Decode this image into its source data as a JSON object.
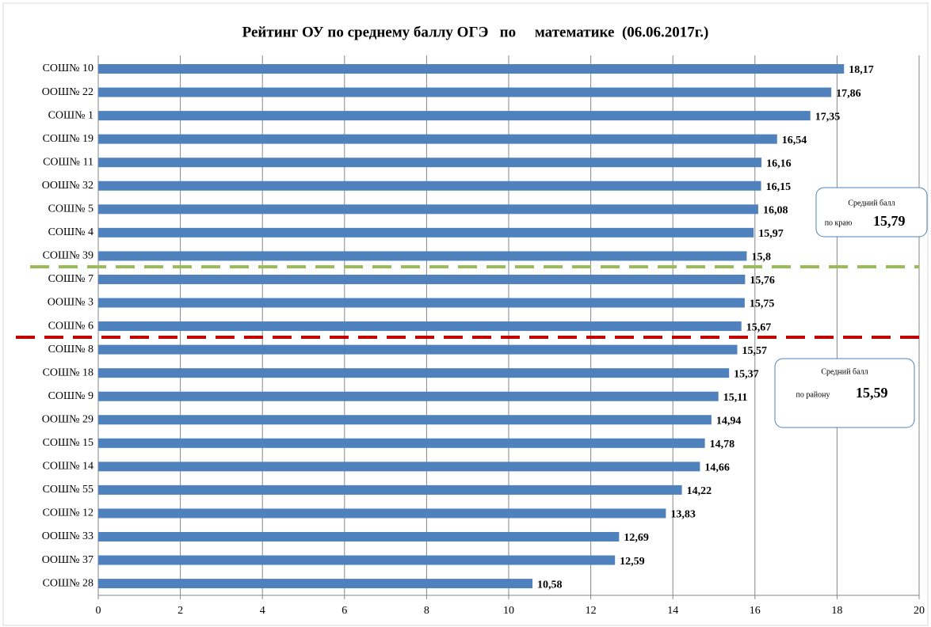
{
  "chart_data": {
    "type": "bar",
    "orientation": "horizontal",
    "title": "Рейтинг ОУ по среднему баллу ОГЭ   по     математике  (06.06.2017г.)",
    "categories": [
      "СОШ№ 10",
      "ООШ№ 22",
      "СОШ№ 1",
      "СОШ№ 19",
      "СОШ№ 11",
      "ООШ№ 32",
      "СОШ№ 5",
      "СОШ№ 4",
      "СОШ№ 39",
      "СОШ№ 7",
      "ООШ№ 3",
      "СОШ№ 6",
      "СОШ№ 8",
      "СОШ№ 18",
      "СОШ№ 9",
      "ООШ№ 29",
      "СОШ№ 15",
      "СОШ№ 14",
      "СОШ№ 55",
      "СОШ№ 12",
      "ООШ№ 33",
      "ООШ№ 37",
      "СОШ№ 28"
    ],
    "values": [
      18.17,
      17.86,
      17.35,
      16.54,
      16.16,
      16.15,
      16.08,
      15.97,
      15.8,
      15.76,
      15.75,
      15.67,
      15.57,
      15.37,
      15.11,
      14.94,
      14.78,
      14.66,
      14.22,
      13.83,
      12.69,
      12.59,
      10.58
    ],
    "value_labels": [
      "18,17",
      "17,86",
      "17,35",
      "16,54",
      "16,16",
      "16,15",
      "16,08",
      "15,97",
      "15,8",
      "15,76",
      "15,75",
      "15,67",
      "15,57",
      "15,37",
      "15,11",
      "14,94",
      "14,78",
      "14,66",
      "14,22",
      "13,83",
      "12,69",
      "12,59",
      "10,58"
    ],
    "color": "#4f81bd",
    "xlim": [
      0,
      20
    ],
    "xticks": [
      0,
      2,
      4,
      6,
      8,
      10,
      12,
      14,
      16,
      18,
      20
    ],
    "grid": true,
    "annotations": [
      {
        "line1": "Средний балл",
        "line2": "по краю",
        "value": "15,79",
        "color": "#9bbb59"
      },
      {
        "line1": "Средний балл",
        "line2": "по району",
        "value": "15,59",
        "color": "#c00000"
      }
    ]
  }
}
